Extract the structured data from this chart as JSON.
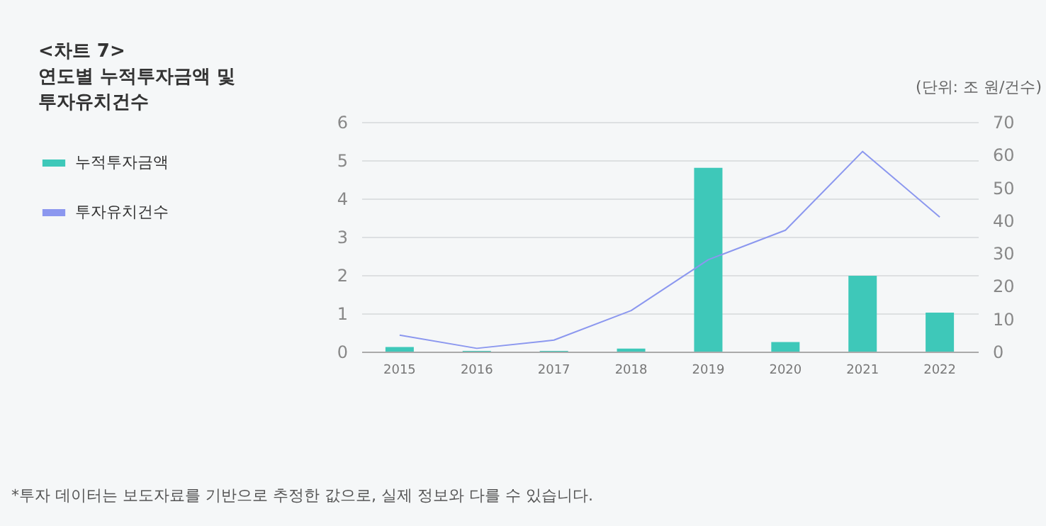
{
  "chart_data": {
    "type": "bar",
    "title": "<차트 7>\n연도별 누적투자금액 및\n투자유치건수",
    "categories": [
      "2015",
      "2016",
      "2017",
      "2018",
      "2019",
      "2020",
      "2021",
      "2022"
    ],
    "series": [
      {
        "name": "누적투자금액",
        "color": "#3ec8b9",
        "values": [
          0.12,
          0.02,
          0.02,
          0.08,
          4.8,
          0.25,
          1.98,
          1.02
        ]
      },
      {
        "name": "투자유치건수",
        "type": "line",
        "axis": "y2",
        "color": "#8b97ef",
        "values": [
          5,
          1,
          3.5,
          12.5,
          28,
          37,
          61,
          41
        ]
      }
    ],
    "ylim": [
      0,
      6
    ],
    "yticks": [
      0,
      1,
      2,
      3,
      4,
      5,
      6
    ],
    "y2lim": [
      0,
      70
    ],
    "y2ticks": [
      0,
      10,
      20,
      30,
      40,
      50,
      60,
      70
    ],
    "grid": "y",
    "legend": "left",
    "annotations": [
      "(단위: 조 원/건수)",
      "*투자 데이터는 보도자료를 기반으로 추정한 값으로, 실제 정보와 다를 수 있습니다."
    ]
  }
}
